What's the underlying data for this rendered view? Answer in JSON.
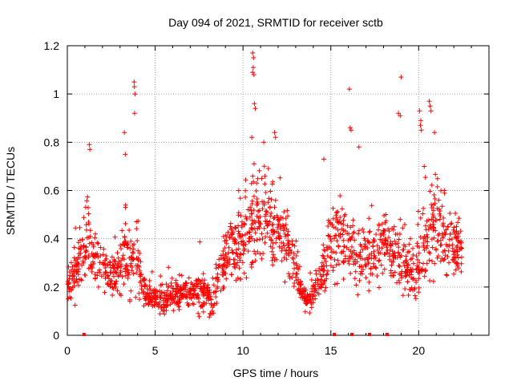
{
  "chart_data": {
    "type": "scatter",
    "title": "Day 094 of 2021, SRMTID for receiver sctb",
    "xlabel": "GPS time / hours",
    "ylabel": "SRMTID / TECUs",
    "xlim": [
      0,
      24
    ],
    "ylim": [
      0,
      1.2
    ],
    "xticks": [
      0,
      5,
      10,
      15,
      20
    ],
    "yticks": [
      0,
      0.2,
      0.4,
      0.6,
      0.8,
      1,
      1.2
    ],
    "xtick_labels": [
      "0",
      "5",
      "10",
      "15",
      "20"
    ],
    "ytick_labels": [
      "0",
      "0.2",
      "0.4",
      "0.6",
      "0.8",
      "1",
      "1.2"
    ],
    "grid": true,
    "marker": "+",
    "color": "#ff0000",
    "envelope": {
      "x": [
        0,
        0.5,
        1.0,
        1.5,
        2.0,
        2.5,
        3.0,
        3.3,
        3.6,
        3.9,
        4.2,
        4.6,
        5.0,
        5.5,
        6.0,
        6.5,
        7.0,
        7.5,
        8.0,
        8.3,
        8.6,
        9.0,
        9.5,
        10.0,
        10.5,
        11.0,
        11.5,
        12.0,
        12.5,
        13.0,
        13.3,
        13.6,
        14.0,
        14.5,
        15.0,
        15.5,
        16.0,
        16.5,
        17.0,
        17.5,
        18.0,
        18.5,
        19.0,
        19.5,
        20.0,
        20.5,
        21.0,
        21.5,
        22.0,
        22.5
      ],
      "mean": [
        0.22,
        0.25,
        0.38,
        0.34,
        0.27,
        0.25,
        0.27,
        0.38,
        0.3,
        0.36,
        0.22,
        0.17,
        0.15,
        0.15,
        0.17,
        0.18,
        0.17,
        0.18,
        0.16,
        0.14,
        0.25,
        0.33,
        0.37,
        0.42,
        0.47,
        0.5,
        0.45,
        0.45,
        0.35,
        0.28,
        0.18,
        0.15,
        0.17,
        0.25,
        0.38,
        0.42,
        0.38,
        0.3,
        0.32,
        0.34,
        0.4,
        0.35,
        0.33,
        0.25,
        0.3,
        0.4,
        0.45,
        0.4,
        0.35,
        0.38
      ],
      "spread": [
        0.07,
        0.1,
        0.15,
        0.12,
        0.1,
        0.08,
        0.12,
        0.2,
        0.15,
        0.2,
        0.08,
        0.06,
        0.05,
        0.06,
        0.06,
        0.06,
        0.07,
        0.08,
        0.08,
        0.07,
        0.1,
        0.12,
        0.14,
        0.18,
        0.2,
        0.2,
        0.18,
        0.18,
        0.14,
        0.1,
        0.06,
        0.05,
        0.06,
        0.1,
        0.15,
        0.18,
        0.16,
        0.13,
        0.14,
        0.14,
        0.16,
        0.14,
        0.15,
        0.1,
        0.15,
        0.18,
        0.2,
        0.17,
        0.14,
        0.12
      ],
      "point_count": 1700
    },
    "peaks": [
      {
        "x": 1.25,
        "y": 0.79
      },
      {
        "x": 1.28,
        "y": 0.77
      },
      {
        "x": 3.25,
        "y": 0.84
      },
      {
        "x": 3.3,
        "y": 0.75
      },
      {
        "x": 3.8,
        "y": 1.05
      },
      {
        "x": 3.82,
        "y": 1.03
      },
      {
        "x": 3.85,
        "y": 1.0
      },
      {
        "x": 3.83,
        "y": 0.92
      },
      {
        "x": 10.55,
        "y": 1.17
      },
      {
        "x": 10.6,
        "y": 1.15
      },
      {
        "x": 10.58,
        "y": 1.11
      },
      {
        "x": 10.55,
        "y": 1.09
      },
      {
        "x": 10.62,
        "y": 1.08
      },
      {
        "x": 10.65,
        "y": 0.96
      },
      {
        "x": 10.7,
        "y": 0.94
      },
      {
        "x": 10.5,
        "y": 0.82
      },
      {
        "x": 11.8,
        "y": 0.84
      },
      {
        "x": 11.85,
        "y": 0.82
      },
      {
        "x": 14.6,
        "y": 0.73
      },
      {
        "x": 16.05,
        "y": 1.02
      },
      {
        "x": 16.1,
        "y": 0.86
      },
      {
        "x": 16.15,
        "y": 0.85
      },
      {
        "x": 16.6,
        "y": 0.78
      },
      {
        "x": 18.85,
        "y": 0.92
      },
      {
        "x": 18.95,
        "y": 0.91
      },
      {
        "x": 19.0,
        "y": 1.07
      },
      {
        "x": 20.05,
        "y": 0.93
      },
      {
        "x": 20.1,
        "y": 0.87
      },
      {
        "x": 20.15,
        "y": 0.85
      },
      {
        "x": 20.12,
        "y": 0.89
      },
      {
        "x": 20.6,
        "y": 0.97
      },
      {
        "x": 20.65,
        "y": 0.95
      },
      {
        "x": 20.7,
        "y": 0.93
      },
      {
        "x": 20.9,
        "y": 0.84
      }
    ],
    "baseline_markers": [
      0.95,
      15.2,
      16.2,
      17.2,
      18.2
    ]
  }
}
